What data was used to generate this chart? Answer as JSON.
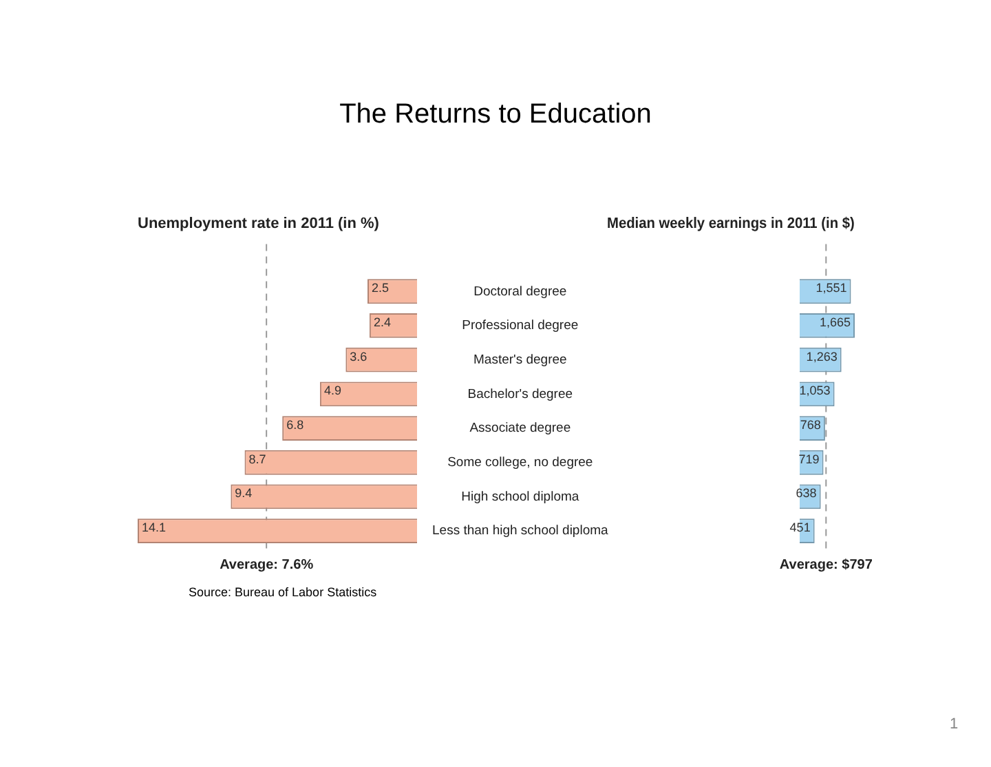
{
  "chart_data": [
    {
      "type": "bar",
      "orientation": "horizontal",
      "title": "The Returns to Education",
      "subtitle": "Unemployment rate in 2011 (in %)",
      "categories": [
        "Doctoral degree",
        "Professional degree",
        "Master's degree",
        "Bachelor's degree",
        "Associate degree",
        "Some college, no degree",
        "High school diploma",
        "Less than high school diploma"
      ],
      "values": [
        2.5,
        2.4,
        3.6,
        4.9,
        6.8,
        8.7,
        9.4,
        14.1
      ],
      "value_labels": [
        "2.5",
        "2.4",
        "3.6",
        "4.9",
        "6.8",
        "8.7",
        "9.4",
        "14.1"
      ],
      "color": "#f7b8a0",
      "xlim": [
        14.1,
        0
      ],
      "tick_labels": "y",
      "ref_lines": [
        {
          "axis": "x",
          "value": 7.6,
          "label": "Average: 7.6%",
          "color": "#999999",
          "line_style": "dashed"
        }
      ],
      "annotations": [
        "Source: Bureau of Labor Statistics"
      ]
    },
    {
      "type": "bar",
      "orientation": "horizontal",
      "subtitle": "Median weekly earnings in 2011 (in $)",
      "categories": [
        null,
        null,
        null,
        null,
        null,
        null,
        null,
        null
      ],
      "values": [
        1551,
        1665,
        1263,
        1053,
        768,
        719,
        638,
        451
      ],
      "value_labels": [
        "1,551",
        "1,665",
        "1,263",
        "1,053",
        "768",
        "719",
        "638",
        "451"
      ],
      "color": "#a4d4f0",
      "xlim": [
        0,
        1665
      ],
      "tick_labels": false,
      "ref_lines": [
        {
          "axis": "x",
          "value": 797,
          "label": "Average: $797",
          "color": "#999999",
          "line_style": "dashed"
        }
      ],
      "annotations": [
        "1"
      ]
    }
  ]
}
